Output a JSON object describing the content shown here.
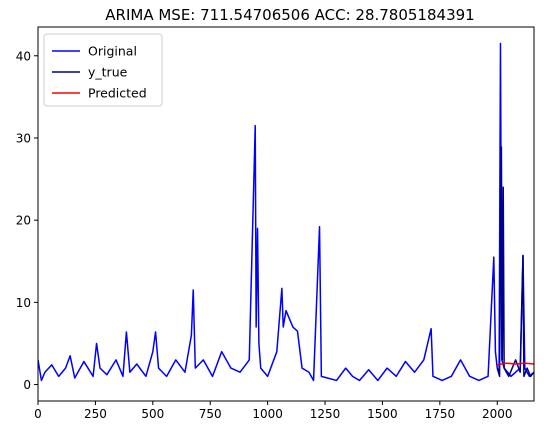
{
  "chart_data": {
    "type": "line",
    "title": "ARIMA MSE: 711.54706506 ACC: 28.7805184391",
    "xlabel": "",
    "ylabel": "",
    "xlim": [
      0,
      2160
    ],
    "ylim": [
      -2.0,
      43.5
    ],
    "xticks": [
      "0",
      "250",
      "500",
      "750",
      "1000",
      "1250",
      "1500",
      "1750",
      "2000"
    ],
    "xtick_values": [
      0,
      250,
      500,
      750,
      1000,
      1250,
      1500,
      1750,
      2000
    ],
    "yticks": [
      "0",
      "10",
      "20",
      "30",
      "40"
    ],
    "ytick_values": [
      0,
      10,
      20,
      30,
      40
    ],
    "grid": false,
    "legend": "top-left",
    "series": [
      {
        "name": "Original",
        "color": "#0000ff",
        "x": [
          0,
          15,
          30,
          60,
          90,
          120,
          140,
          160,
          200,
          240,
          255,
          270,
          300,
          340,
          370,
          385,
          400,
          430,
          470,
          500,
          512,
          525,
          560,
          600,
          640,
          668,
          676,
          685,
          720,
          760,
          800,
          840,
          880,
          920,
          946,
          950,
          956,
          962,
          970,
          1000,
          1040,
          1062,
          1068,
          1080,
          1095,
          1110,
          1130,
          1150,
          1180,
          1200,
          1226,
          1234,
          1260,
          1300,
          1340,
          1370,
          1400,
          1440,
          1480,
          1520,
          1560,
          1600,
          1640,
          1680,
          1712,
          1720,
          1760,
          1800,
          1840,
          1880,
          1920,
          1960,
          1985,
          1992,
          2000,
          2008,
          2014,
          2020,
          2030,
          2060,
          2100,
          2112,
          2120,
          2140,
          2160
        ],
        "y": [
          3.0,
          0.5,
          1.5,
          2.4,
          1.0,
          2.0,
          3.5,
          0.8,
          2.8,
          1.0,
          5.0,
          2.0,
          1.2,
          3.0,
          1.0,
          6.4,
          1.5,
          2.5,
          1.0,
          4.0,
          6.4,
          2.0,
          1.0,
          3.0,
          1.5,
          6.0,
          11.5,
          2.0,
          3.0,
          1.0,
          4.0,
          2.0,
          1.5,
          3.0,
          31.5,
          7.0,
          19.0,
          5.0,
          2.0,
          1.0,
          4.0,
          11.7,
          7.0,
          9.0,
          8.0,
          7.0,
          6.5,
          2.0,
          1.5,
          0.5,
          19.2,
          1.0,
          0.8,
          0.5,
          2.0,
          1.0,
          0.5,
          1.8,
          0.5,
          2.0,
          1.0,
          2.8,
          1.5,
          3.0,
          6.8,
          1.0,
          0.5,
          1.0,
          3.0,
          1.0,
          0.5,
          1.0,
          15.5,
          4.0,
          2.0,
          1.5,
          41.5,
          3.0,
          2.0,
          1.0,
          2.0,
          15.7,
          2.0,
          1.0,
          1.5
        ]
      },
      {
        "name": "y_true",
        "color": "#00008b",
        "x": [
          2000,
          2010,
          2018,
          2022,
          2026,
          2030,
          2050,
          2080,
          2100,
          2112,
          2116,
          2130,
          2145,
          2160
        ],
        "y": [
          2.0,
          1.0,
          28.9,
          3.0,
          24.0,
          2.0,
          1.0,
          3.0,
          1.5,
          15.7,
          1.0,
          2.0,
          1.0,
          1.5
        ]
      },
      {
        "name": "Predicted",
        "color": "#ff0000",
        "x": [
          2000,
          2040,
          2080,
          2120,
          2160
        ],
        "y": [
          2.4,
          2.6,
          2.5,
          2.6,
          2.5
        ]
      }
    ]
  }
}
